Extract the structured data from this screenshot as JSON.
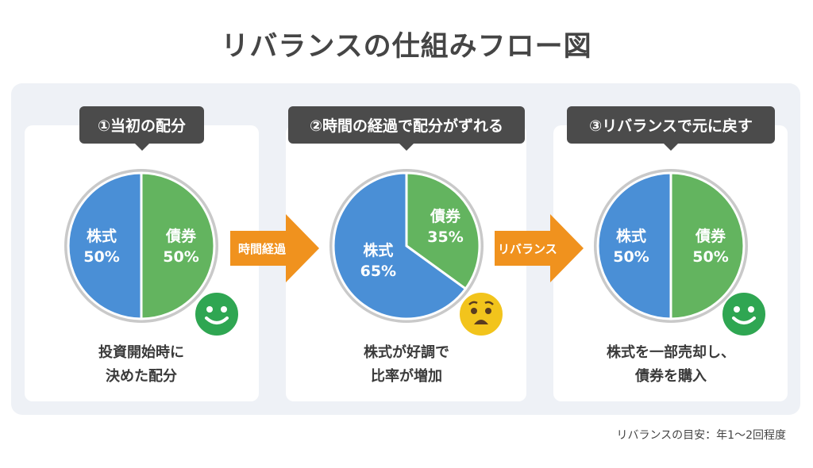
{
  "title": "リバランスの仕組みフロー図",
  "colors": {
    "stock": "#4a8fd6",
    "bond": "#63b45f",
    "arrow": "#f0921e",
    "label_bg": "#4b4b4b",
    "happy": "#2fa652",
    "worried": "#f2c41c"
  },
  "steps": [
    {
      "label": "①当初の配分",
      "pie": [
        {
          "name": "株式",
          "value": 50,
          "text": "50%"
        },
        {
          "name": "債券",
          "value": 50,
          "text": "50%"
        }
      ],
      "face": "happy-face",
      "caption": [
        "投資開始時に",
        "決めた配分"
      ]
    },
    {
      "label": "②時間の経過で配分がずれる",
      "pie": [
        {
          "name": "株式",
          "value": 65,
          "text": "65%"
        },
        {
          "name": "債券",
          "value": 35,
          "text": "35%"
        }
      ],
      "face": "worried-face",
      "caption": [
        "株式が好調で",
        "比率が増加"
      ]
    },
    {
      "label": "③リバランスで元に戻す",
      "pie": [
        {
          "name": "株式",
          "value": 50,
          "text": "50%"
        },
        {
          "name": "債券",
          "value": 50,
          "text": "50%"
        }
      ],
      "face": "happy-face",
      "caption": [
        "株式を一部売却し、",
        "債券を購入"
      ]
    }
  ],
  "arrows": [
    "時間経過",
    "リバランス"
  ],
  "footnote": "リバランスの目安：年1〜2回程度"
}
